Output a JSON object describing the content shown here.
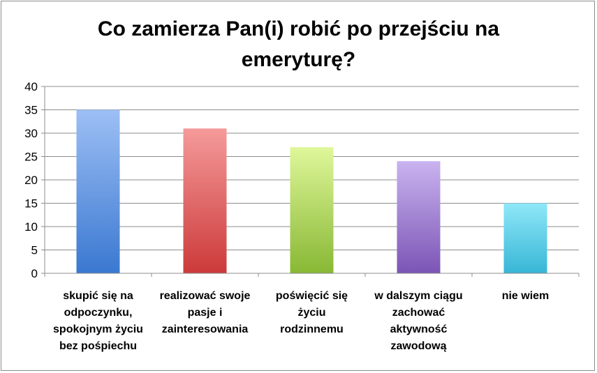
{
  "chart_data": {
    "type": "bar",
    "title_lines": [
      "Co zamierza Pan(i) robić po przejściu na",
      "emeryturę?"
    ],
    "categories": [
      "skupić się na\nodpoczynku,\nspokojnym życiu\nbez  pośpiechu",
      "realizować swoje\npasje i\nzainteresowania",
      "poświęcić się\nżyciu\nrodzinnemu",
      "w dalszym ciągu\nzachować\naktywność\nzawodową",
      "nie wiem"
    ],
    "values": [
      35,
      31,
      27,
      24,
      15
    ],
    "ylim": [
      0,
      40
    ],
    "yticks": [
      "0",
      "5",
      "10",
      "15",
      "20",
      "25",
      "30",
      "35",
      "40"
    ],
    "grid": true,
    "legend": "none",
    "colors": [
      [
        "#9dbff5",
        "#3a78d0"
      ],
      [
        "#f59a9a",
        "#cc3a3a"
      ],
      [
        "#dff79a",
        "#88b834"
      ],
      [
        "#c9b3ef",
        "#7b55b5"
      ],
      [
        "#8fe8f8",
        "#38b6d6"
      ]
    ]
  }
}
